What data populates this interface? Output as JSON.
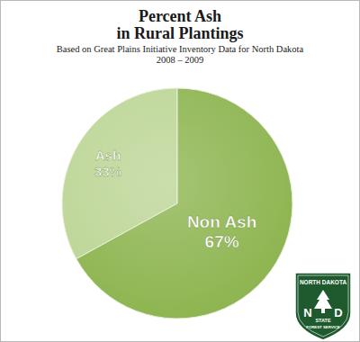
{
  "chart_data": {
    "type": "pie",
    "title": [
      "Percent Ash",
      "in Rural Plantings"
    ],
    "subtitle": [
      "Based on Great Plains Initiative Inventory Data for North Dakota",
      "2008 – 2009"
    ],
    "categories": [
      "Ash",
      "Non Ash"
    ],
    "values": [
      33,
      67
    ],
    "value_labels": [
      "33%",
      "67%"
    ],
    "colors": [
      "#bcd595",
      "#8cb44e"
    ],
    "data_labels": true,
    "annotations": [
      "NORTH DAKOTA",
      "N",
      "D",
      "STATE",
      "FOREST SERVICE"
    ]
  }
}
